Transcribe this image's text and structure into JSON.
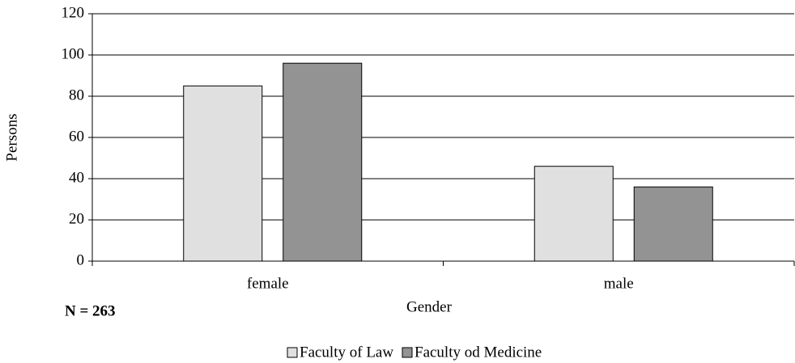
{
  "chart_data": {
    "type": "bar",
    "categories": [
      "female",
      "male"
    ],
    "series": [
      {
        "name": "Faculty of Law",
        "color": "#e0e0e0",
        "values": [
          85,
          46
        ]
      },
      {
        "name": "Faculty od Medicine",
        "color": "#939393",
        "values": [
          96,
          36
        ]
      }
    ],
    "ylabel": "Persons",
    "xlabel": "Gender",
    "annotation": "N = 263",
    "ylim": [
      0,
      120
    ],
    "yticks": [
      0,
      20,
      40,
      60,
      80,
      100,
      120
    ],
    "grid": true,
    "legend": "bottom"
  }
}
